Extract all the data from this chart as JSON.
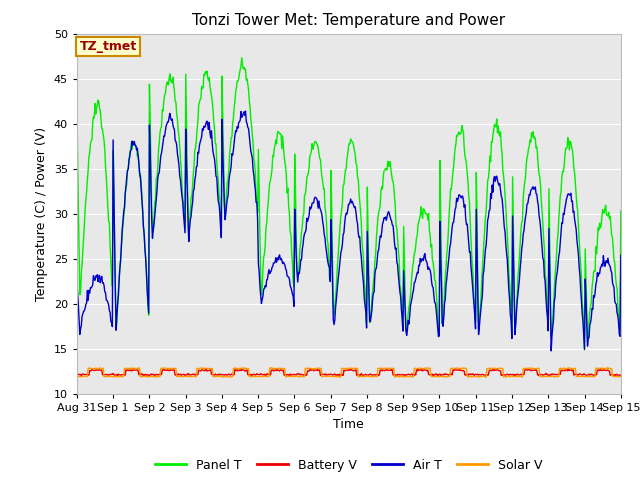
{
  "title": "Tonzi Tower Met: Temperature and Power",
  "xlabel": "Time",
  "ylabel": "Temperature (C) / Power (V)",
  "ylim": [
    10,
    50
  ],
  "xlim_days": [
    0,
    15
  ],
  "yticks": [
    10,
    15,
    20,
    25,
    30,
    35,
    40,
    45,
    50
  ],
  "background_color": "#e8e8e8",
  "colors": {
    "panel_t": "#00ee00",
    "battery_v": "#ee0000",
    "air_t": "#0000cc",
    "solar_v": "#ff9900"
  },
  "legend_label": "TZ_tmet",
  "legend_box_color": "#ffffcc",
  "legend_box_edge": "#cc8800",
  "legend_text_color": "#990000",
  "series_labels": [
    "Panel T",
    "Battery V",
    "Air T",
    "Solar V"
  ],
  "tick_labels": [
    "Aug 31",
    "Sep 1",
    "Sep 2",
    "Sep 3",
    "Sep 4",
    "Sep 5",
    "Sep 6",
    "Sep 7",
    "Sep 8",
    "Sep 9",
    "Sep 10",
    "Sep 11",
    "Sep 12",
    "Sep 13",
    "Sep 14",
    "Sep 15"
  ]
}
